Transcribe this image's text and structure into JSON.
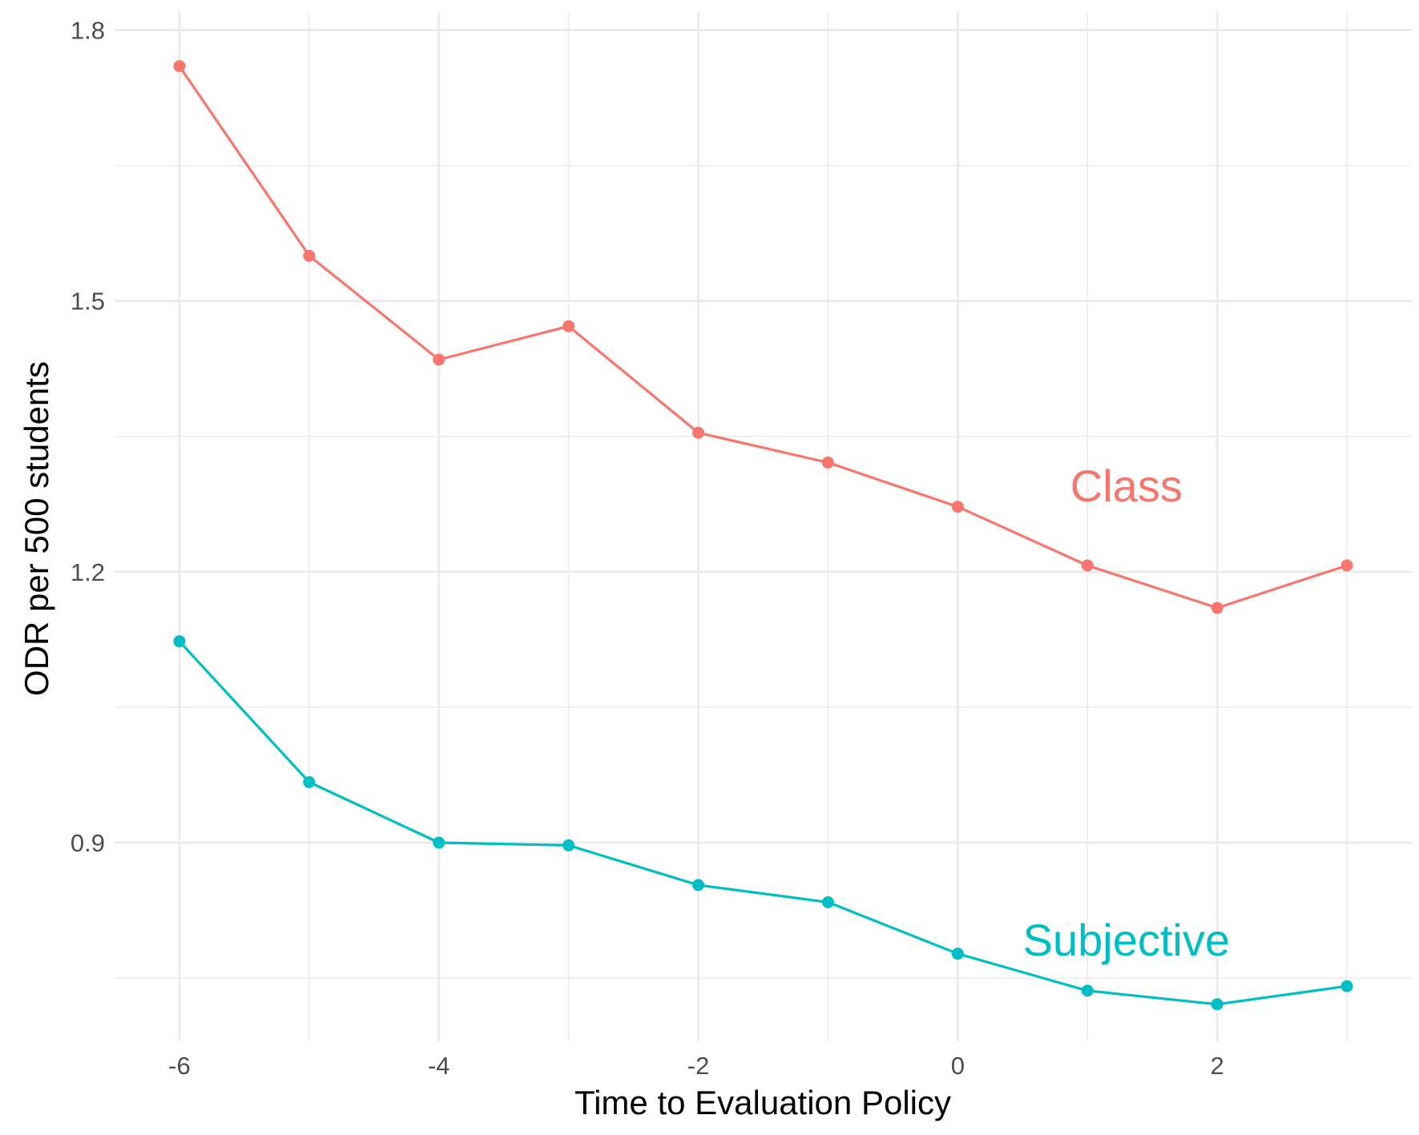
{
  "chart_data": {
    "type": "line",
    "title": "",
    "xlabel": "Time to Evaluation Policy",
    "ylabel": "ODR per 500 students",
    "x": [
      -6,
      -5,
      -4,
      -3,
      -2,
      -1,
      0,
      1,
      2,
      3
    ],
    "xlim": [
      -6.5,
      3.5
    ],
    "ylim": [
      0.68,
      1.82
    ],
    "x_ticks": [
      -6,
      -4,
      -2,
      0,
      2
    ],
    "x_tick_labels": [
      "-6",
      "-4",
      "-2",
      "0",
      "2"
    ],
    "x_minor_ticks": [
      -5,
      -3,
      -1,
      1,
      3
    ],
    "y_ticks": [
      0.9,
      1.2,
      1.5,
      1.8
    ],
    "y_tick_labels": [
      "0.9",
      "1.2",
      "1.5",
      "1.8"
    ],
    "y_minor_ticks": [
      0.75,
      1.05,
      1.35,
      1.65
    ],
    "grid": true,
    "legend": "none",
    "series": [
      {
        "name": "Class",
        "color": "#F8766D",
        "values": [
          1.76,
          1.55,
          1.435,
          1.472,
          1.354,
          1.321,
          1.272,
          1.207,
          1.16,
          1.207
        ],
        "label_x": 1.3,
        "label_y": 1.295
      },
      {
        "name": "Subjective",
        "color": "#00BFC4",
        "values": [
          1.123,
          0.967,
          0.9,
          0.897,
          0.853,
          0.834,
          0.777,
          0.736,
          0.721,
          0.741
        ],
        "label_x": 1.3,
        "label_y": 0.792
      }
    ]
  }
}
